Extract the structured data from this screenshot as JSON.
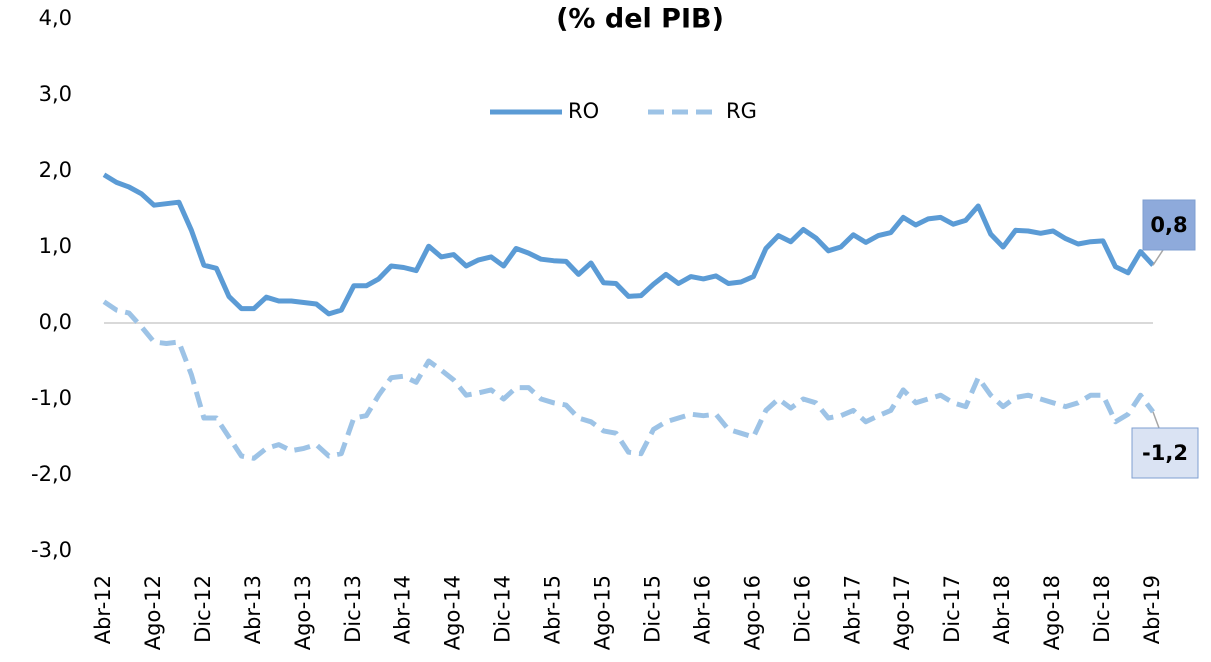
{
  "chart_data": {
    "type": "line",
    "title": "(% del PIB)",
    "categories": [
      "Abr-12",
      null,
      null,
      null,
      "Ago-12",
      null,
      null,
      null,
      "Dic-12",
      null,
      null,
      null,
      "Abr-13",
      null,
      null,
      null,
      "Ago-13",
      null,
      null,
      null,
      "Dic-13",
      null,
      null,
      null,
      "Abr-14",
      null,
      null,
      null,
      "Ago-14",
      null,
      null,
      null,
      "Dic-14",
      null,
      null,
      null,
      "Abr-15",
      null,
      null,
      null,
      "Ago-15",
      null,
      null,
      null,
      "Dic-15",
      null,
      null,
      null,
      "Abr-16",
      null,
      null,
      null,
      "Ago-16",
      null,
      null,
      null,
      "Dic-16",
      null,
      null,
      null,
      "Abr-17",
      null,
      null,
      null,
      "Ago-17",
      null,
      null,
      null,
      "Dic-17",
      null,
      null,
      null,
      "Abr-18",
      null,
      null,
      null,
      "Ago-18",
      null,
      null,
      null,
      "Dic-18",
      null,
      null,
      null,
      "Abr-19"
    ],
    "series": [
      {
        "name": "RO",
        "color": "#5b9bd5",
        "dash": false,
        "values": [
          1.95,
          1.85,
          1.79,
          1.7,
          1.55,
          1.57,
          1.59,
          1.22,
          0.76,
          0.72,
          0.35,
          0.19,
          0.19,
          0.34,
          0.29,
          0.29,
          0.27,
          0.25,
          0.12,
          0.17,
          0.49,
          0.49,
          0.58,
          0.75,
          0.73,
          0.69,
          1.01,
          0.87,
          0.9,
          0.75,
          0.83,
          0.87,
          0.75,
          0.98,
          0.92,
          0.84,
          0.82,
          0.81,
          0.64,
          0.79,
          0.53,
          0.52,
          0.35,
          0.36,
          0.51,
          0.64,
          0.52,
          0.61,
          0.58,
          0.62,
          0.52,
          0.54,
          0.61,
          0.98,
          1.15,
          1.07,
          1.23,
          1.12,
          0.95,
          1.0,
          1.16,
          1.06,
          1.15,
          1.19,
          1.39,
          1.29,
          1.37,
          1.39,
          1.3,
          1.35,
          1.54,
          1.17,
          1.0,
          1.22,
          1.21,
          1.18,
          1.21,
          1.11,
          1.04,
          1.07,
          1.08,
          0.74,
          0.66,
          0.94,
          0.76
        ],
        "value_labels": [
          null,
          null,
          null,
          null,
          null,
          null,
          null,
          null,
          null,
          null,
          null,
          null,
          null,
          null,
          null,
          null,
          null,
          null,
          null,
          null,
          null,
          null,
          null,
          null,
          null,
          null,
          null,
          null,
          null,
          null,
          null,
          null,
          null,
          null,
          null,
          null,
          null,
          null,
          null,
          null,
          null,
          null,
          null,
          null,
          null,
          null,
          null,
          null,
          null,
          null,
          null,
          null,
          null,
          null,
          null,
          null,
          null,
          null,
          null,
          null,
          null,
          null,
          null,
          null,
          null,
          null,
          null,
          null,
          null,
          null,
          null,
          null,
          null,
          null,
          null,
          null,
          null,
          null,
          null,
          null,
          null,
          null,
          null,
          null,
          "0,8"
        ]
      },
      {
        "name": "RG",
        "color": "#9dc3e6",
        "dash": true,
        "values": [
          0.28,
          0.17,
          0.13,
          -0.05,
          -0.25,
          -0.27,
          -0.25,
          -0.68,
          -1.25,
          -1.25,
          -1.5,
          -1.75,
          -1.78,
          -1.65,
          -1.6,
          -1.68,
          -1.65,
          -1.6,
          -1.75,
          -1.72,
          -1.25,
          -1.22,
          -0.95,
          -0.72,
          -0.7,
          -0.78,
          -0.5,
          -0.62,
          -0.75,
          -0.95,
          -0.92,
          -0.88,
          -1.0,
          -0.85,
          -0.85,
          -1.0,
          -1.05,
          -1.08,
          -1.25,
          -1.3,
          -1.42,
          -1.45,
          -1.7,
          -1.72,
          -1.4,
          -1.3,
          -1.25,
          -1.2,
          -1.22,
          -1.2,
          -1.4,
          -1.45,
          -1.5,
          -1.15,
          -1.0,
          -1.12,
          -1.0,
          -1.05,
          -1.25,
          -1.22,
          -1.15,
          -1.3,
          -1.22,
          -1.15,
          -0.88,
          -1.05,
          -1.0,
          -0.95,
          -1.05,
          -1.1,
          -0.72,
          -0.95,
          -1.1,
          -0.98,
          -0.95,
          -1.0,
          -1.05,
          -1.1,
          -1.05,
          -0.95,
          -0.95,
          -1.3,
          -1.2,
          -0.95,
          -1.17
        ],
        "value_labels": [
          null,
          null,
          null,
          null,
          null,
          null,
          null,
          null,
          null,
          null,
          null,
          null,
          null,
          null,
          null,
          null,
          null,
          null,
          null,
          null,
          null,
          null,
          null,
          null,
          null,
          null,
          null,
          null,
          null,
          null,
          null,
          null,
          null,
          null,
          null,
          null,
          null,
          null,
          null,
          null,
          null,
          null,
          null,
          null,
          null,
          null,
          null,
          null,
          null,
          null,
          null,
          null,
          null,
          null,
          null,
          null,
          null,
          null,
          null,
          null,
          null,
          null,
          null,
          null,
          null,
          null,
          null,
          null,
          null,
          null,
          null,
          null,
          null,
          null,
          null,
          null,
          null,
          null,
          null,
          null,
          null,
          null,
          null,
          null,
          "-1,2"
        ]
      }
    ],
    "ylim": [
      -3,
      4
    ],
    "yticks": [
      {
        "value": -3,
        "label": "-3,0"
      },
      {
        "value": -2,
        "label": "-2,0"
      },
      {
        "value": -1,
        "label": "-1,0"
      },
      {
        "value": 0,
        "label": "0,0"
      },
      {
        "value": 1,
        "label": "1,0"
      },
      {
        "value": 2,
        "label": "2,0"
      },
      {
        "value": 3,
        "label": "3,0"
      },
      {
        "value": 4,
        "label": "4,0"
      }
    ],
    "legend": "top"
  }
}
